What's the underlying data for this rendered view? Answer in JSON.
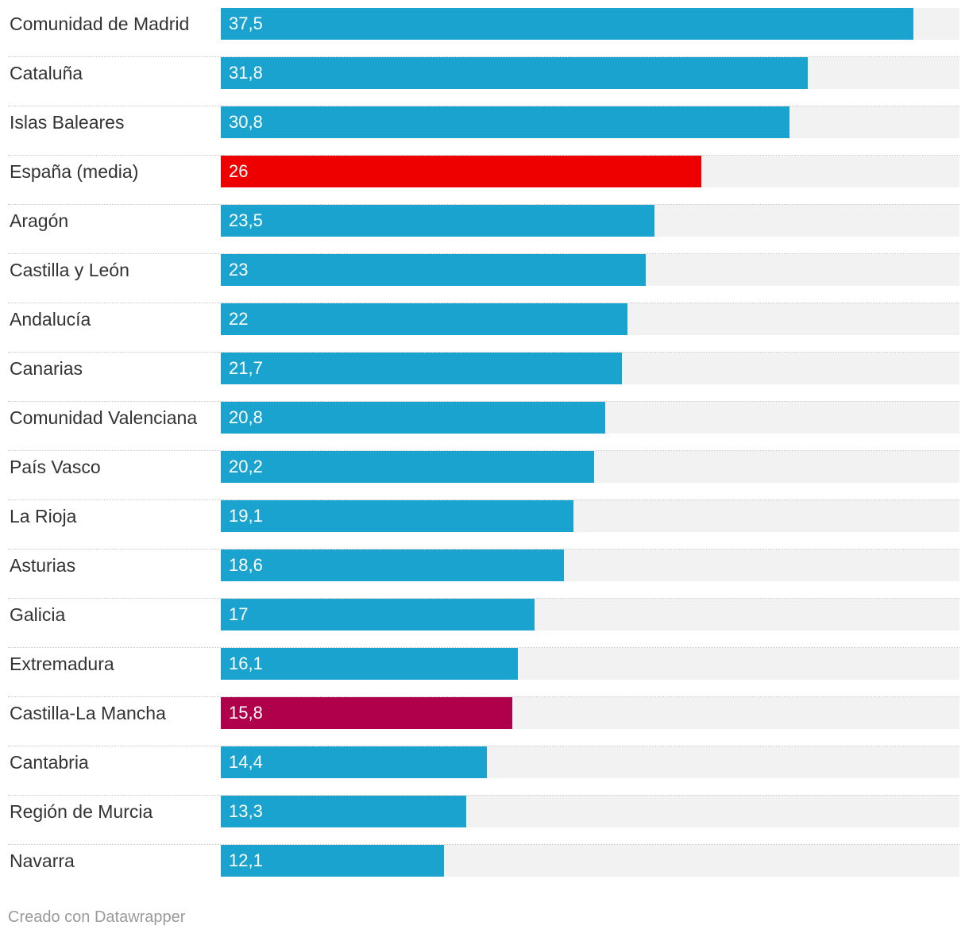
{
  "chart_data": {
    "type": "bar",
    "orientation": "horizontal",
    "xlim": [
      0,
      40
    ],
    "title": "",
    "xlabel": "",
    "ylabel": "",
    "grid": false,
    "rows": [
      {
        "label": "Comunidad de Madrid",
        "value": 37.5,
        "value_label": "37,5",
        "color": "#1aa3cf"
      },
      {
        "label": "Cataluña",
        "value": 31.8,
        "value_label": "31,8",
        "color": "#1aa3cf"
      },
      {
        "label": "Islas Baleares",
        "value": 30.8,
        "value_label": "30,8",
        "color": "#1aa3cf"
      },
      {
        "label": "España (media)",
        "value": 26,
        "value_label": "26",
        "color": "#ee0000"
      },
      {
        "label": "Aragón",
        "value": 23.5,
        "value_label": "23,5",
        "color": "#1aa3cf"
      },
      {
        "label": "Castilla y León",
        "value": 23,
        "value_label": "23",
        "color": "#1aa3cf"
      },
      {
        "label": "Andalucía",
        "value": 22,
        "value_label": "22",
        "color": "#1aa3cf"
      },
      {
        "label": "Canarias",
        "value": 21.7,
        "value_label": "21,7",
        "color": "#1aa3cf"
      },
      {
        "label": "Comunidad Valenciana",
        "value": 20.8,
        "value_label": "20,8",
        "color": "#1aa3cf"
      },
      {
        "label": "País Vasco",
        "value": 20.2,
        "value_label": "20,2",
        "color": "#1aa3cf"
      },
      {
        "label": "La Rioja",
        "value": 19.1,
        "value_label": "19,1",
        "color": "#1aa3cf"
      },
      {
        "label": "Asturias",
        "value": 18.6,
        "value_label": "18,6",
        "color": "#1aa3cf"
      },
      {
        "label": "Galicia",
        "value": 17,
        "value_label": "17",
        "color": "#1aa3cf"
      },
      {
        "label": "Extremadura",
        "value": 16.1,
        "value_label": "16,1",
        "color": "#1aa3cf"
      },
      {
        "label": "Castilla-La Mancha",
        "value": 15.8,
        "value_label": "15,8",
        "color": "#b0004c"
      },
      {
        "label": "Cantabria",
        "value": 14.4,
        "value_label": "14,4",
        "color": "#1aa3cf"
      },
      {
        "label": "Región de Murcia",
        "value": 13.3,
        "value_label": "13,3",
        "color": "#1aa3cf"
      },
      {
        "label": "Navarra",
        "value": 12.1,
        "value_label": "12,1",
        "color": "#1aa3cf"
      }
    ]
  },
  "footer": {
    "credit": "Creado con Datawrapper"
  }
}
